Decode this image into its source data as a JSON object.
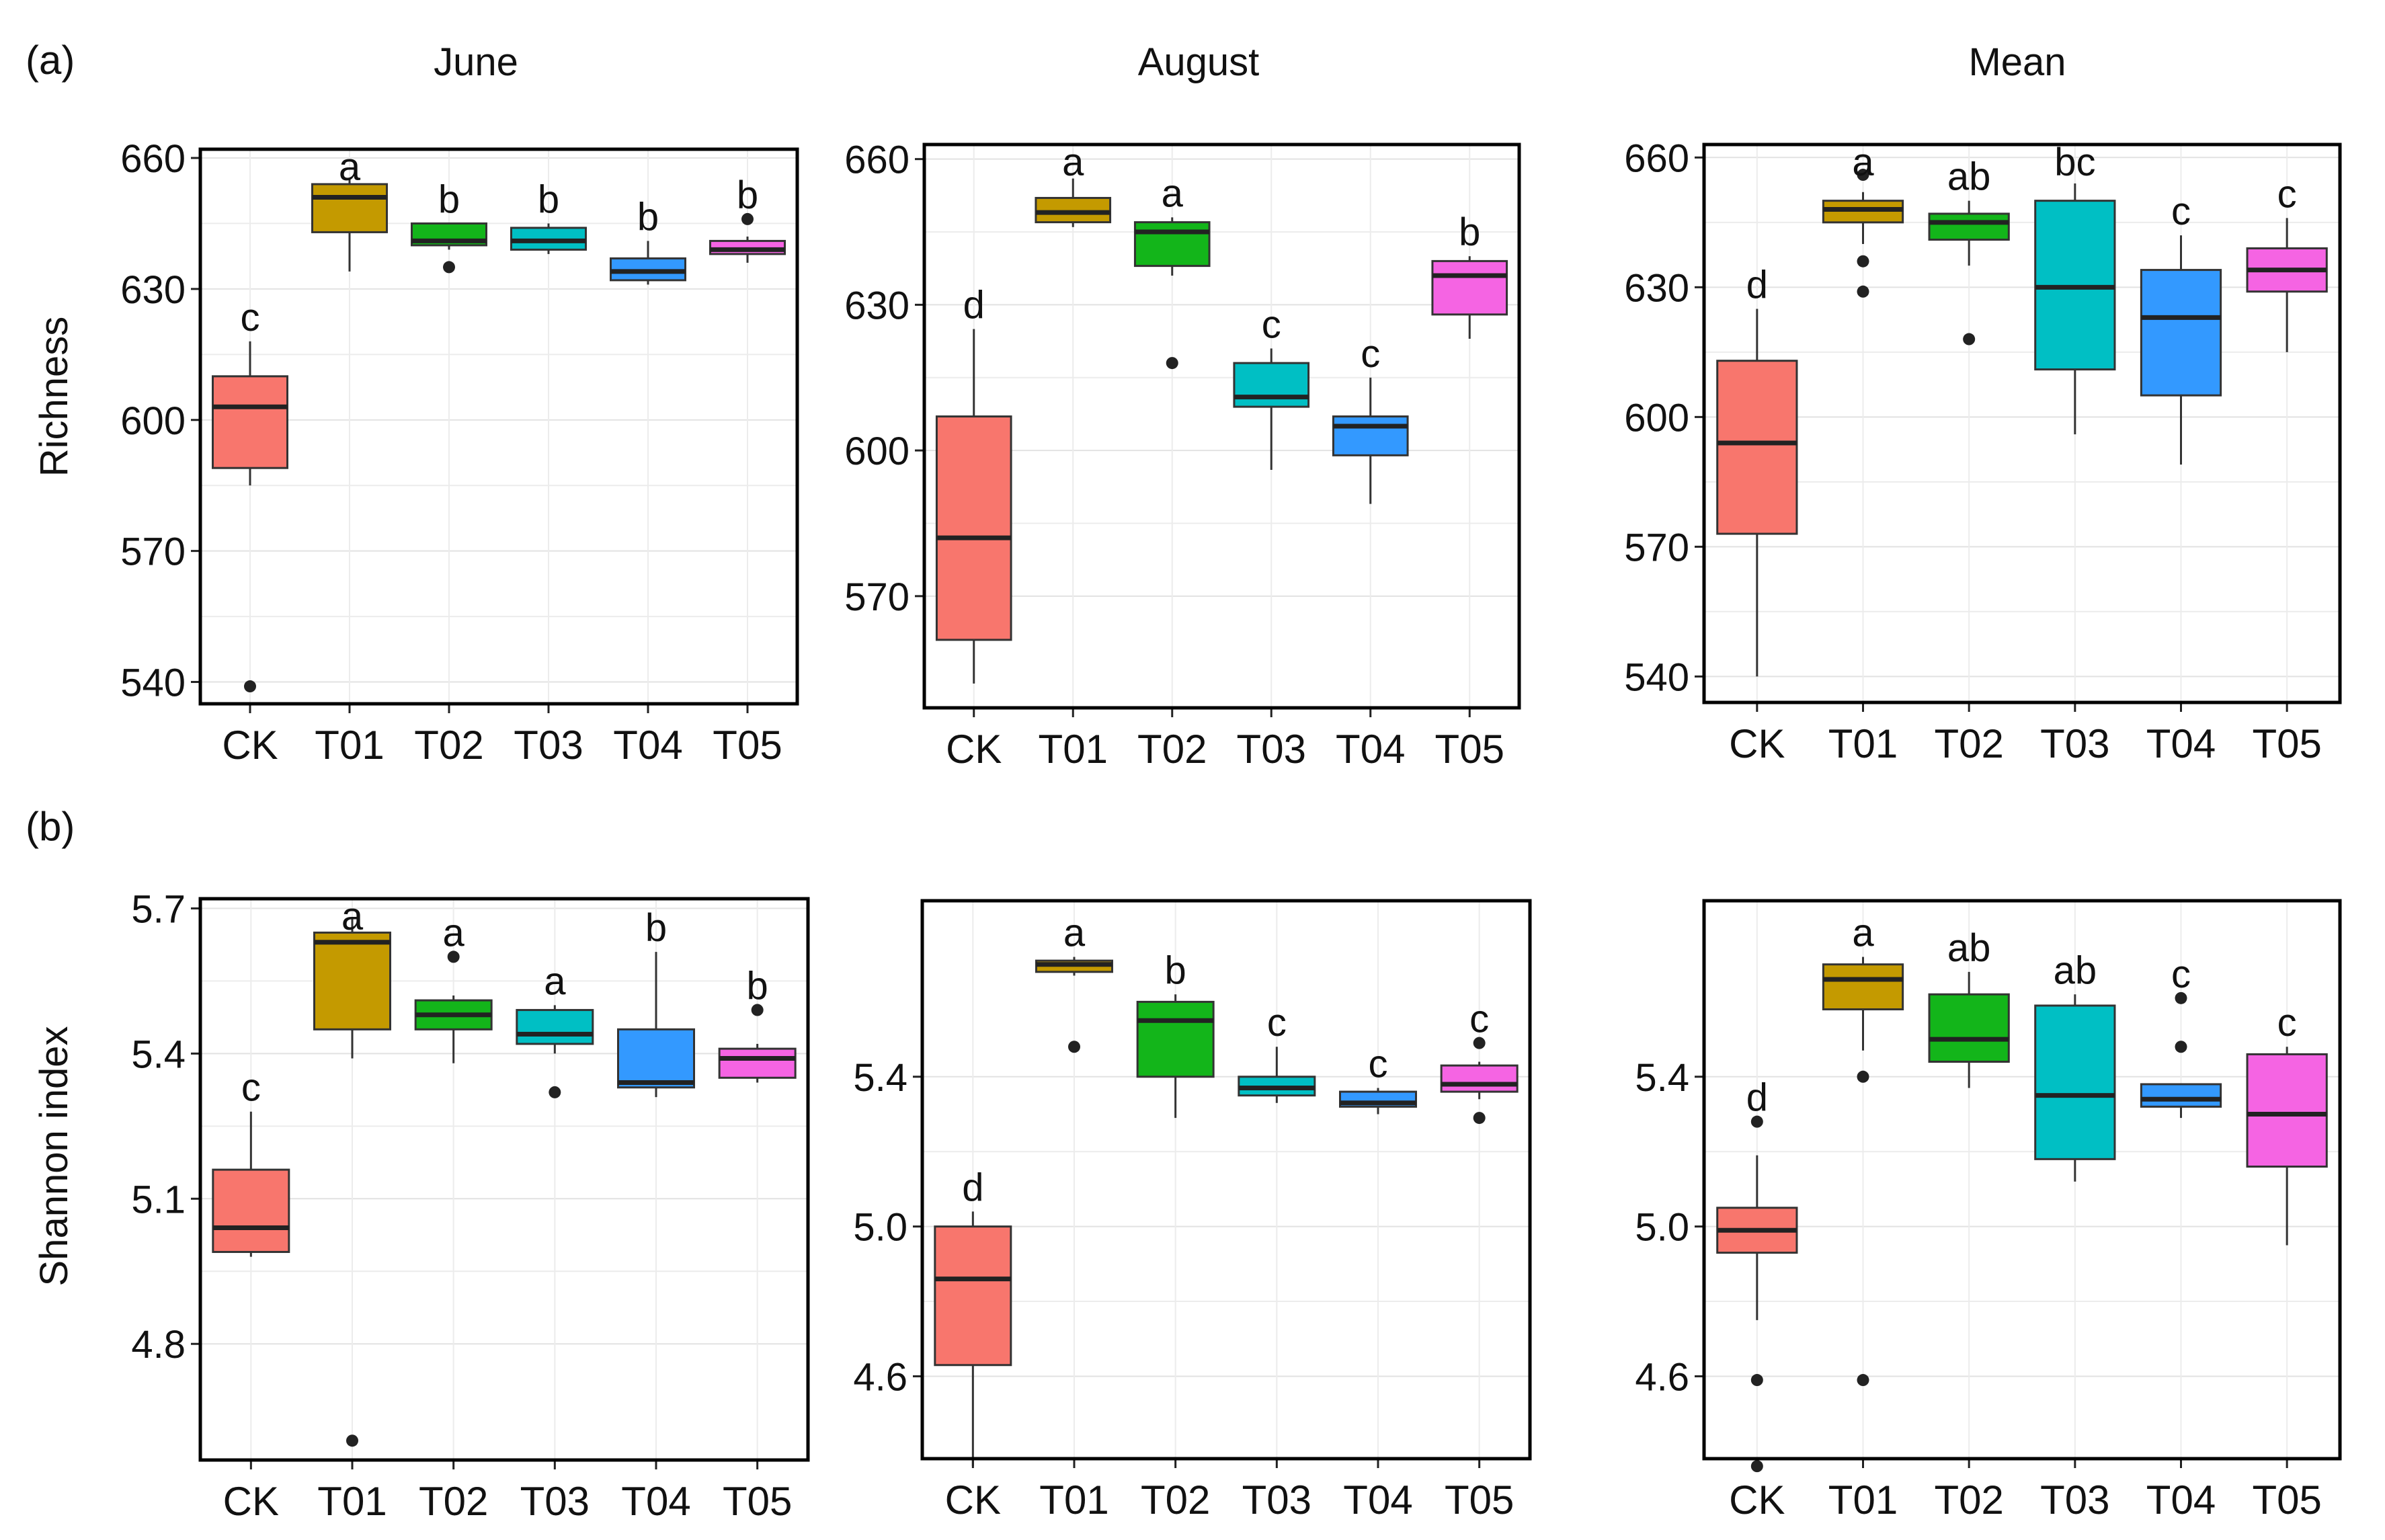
{
  "panel_labels": {
    "a": "(a)",
    "b": "(b)"
  },
  "column_titles": [
    "June",
    "August",
    "Mean"
  ],
  "ylabels": {
    "richness": "Richness",
    "shannon": "Shannon index"
  },
  "categories": [
    "CK",
    "T01",
    "T02",
    "T03",
    "T04",
    "T05"
  ],
  "colors": {
    "CK": "#F8766D",
    "T01": "#C49A00",
    "T02": "#13B51A",
    "T03": "#00BFC4",
    "T04": "#3399FF",
    "T05": "#F564E3"
  },
  "chart_data": [
    {
      "type": "box",
      "id": "richness-june",
      "row": "richness",
      "title": "June",
      "ylabel": "Richness",
      "ylim": [
        535,
        662
      ],
      "yticks": [
        540,
        570,
        600,
        630,
        660
      ],
      "boxes": [
        {
          "cat": "CK",
          "lw": 585,
          "q1": 589,
          "med": 603,
          "q3": 610,
          "uw": 618,
          "out": [
            539
          ],
          "letter": "c"
        },
        {
          "cat": "T01",
          "lw": 634,
          "q1": 643,
          "med": 651,
          "q3": 654,
          "uw": 655,
          "out": [],
          "letter": "a"
        },
        {
          "cat": "T02",
          "lw": 639,
          "q1": 640,
          "med": 641,
          "q3": 645,
          "uw": 645,
          "out": [
            635
          ],
          "letter": "b"
        },
        {
          "cat": "T03",
          "lw": 638,
          "q1": 639,
          "med": 641,
          "q3": 644,
          "uw": 645,
          "out": [],
          "letter": "b"
        },
        {
          "cat": "T04",
          "lw": 631,
          "q1": 632,
          "med": 634,
          "q3": 637,
          "uw": 641,
          "out": [],
          "letter": "b"
        },
        {
          "cat": "T05",
          "lw": 636,
          "q1": 638,
          "med": 639,
          "q3": 641,
          "uw": 642,
          "out": [
            646
          ],
          "letter": "b"
        }
      ]
    },
    {
      "type": "box",
      "id": "richness-august",
      "row": "richness",
      "title": "August",
      "ylim": [
        547,
        663
      ],
      "yticks": [
        570,
        600,
        630,
        660
      ],
      "boxes": [
        {
          "cat": "CK",
          "lw": 552,
          "q1": 561,
          "med": 582,
          "q3": 607,
          "uw": 625,
          "out": [],
          "letter": "d"
        },
        {
          "cat": "T01",
          "lw": 646,
          "q1": 647,
          "med": 649,
          "q3": 652,
          "uw": 656,
          "out": [],
          "letter": "a"
        },
        {
          "cat": "T02",
          "lw": 636,
          "q1": 638,
          "med": 645,
          "q3": 647,
          "uw": 648,
          "out": [
            618
          ],
          "letter": "a"
        },
        {
          "cat": "T03",
          "lw": 596,
          "q1": 609,
          "med": 611,
          "q3": 618,
          "uw": 621,
          "out": [],
          "letter": "c"
        },
        {
          "cat": "T04",
          "lw": 589,
          "q1": 599,
          "med": 605,
          "q3": 607,
          "uw": 615,
          "out": [],
          "letter": "c"
        },
        {
          "cat": "T05",
          "lw": 623,
          "q1": 628,
          "med": 636,
          "q3": 639,
          "uw": 640,
          "out": [],
          "letter": "b"
        }
      ]
    },
    {
      "type": "box",
      "id": "richness-mean",
      "row": "richness",
      "title": "Mean",
      "ylim": [
        534,
        663
      ],
      "yticks": [
        540,
        570,
        600,
        630,
        660
      ],
      "boxes": [
        {
          "cat": "CK",
          "lw": 540,
          "q1": 573,
          "med": 594,
          "q3": 613,
          "uw": 625,
          "out": [],
          "letter": "d"
        },
        {
          "cat": "T01",
          "lw": 640,
          "q1": 645,
          "med": 648,
          "q3": 650,
          "uw": 652,
          "out": [
            656,
            636,
            629
          ],
          "letter": "a"
        },
        {
          "cat": "T02",
          "lw": 635,
          "q1": 641,
          "med": 645,
          "q3": 647,
          "uw": 650,
          "out": [
            618
          ],
          "letter": "ab"
        },
        {
          "cat": "T03",
          "lw": 596,
          "q1": 611,
          "med": 630,
          "q3": 650,
          "uw": 654,
          "out": [],
          "letter": "bc"
        },
        {
          "cat": "T04",
          "lw": 589,
          "q1": 605,
          "med": 623,
          "q3": 634,
          "uw": 642,
          "out": [],
          "letter": "c"
        },
        {
          "cat": "T05",
          "lw": 615,
          "q1": 629,
          "med": 634,
          "q3": 639,
          "uw": 646,
          "out": [],
          "letter": "c"
        }
      ]
    },
    {
      "type": "box",
      "id": "shannon-june",
      "row": "shannon",
      "title": "June",
      "ylabel": "Shannon index",
      "ylim": [
        4.56,
        5.72
      ],
      "yticks": [
        4.8,
        5.1,
        5.4,
        5.7
      ],
      "boxes": [
        {
          "cat": "CK",
          "lw": 4.98,
          "q1": 4.99,
          "med": 5.04,
          "q3": 5.16,
          "uw": 5.28,
          "out": [],
          "letter": "c"
        },
        {
          "cat": "T01",
          "lw": 5.39,
          "q1": 5.45,
          "med": 5.63,
          "q3": 5.65,
          "uw": 5.68,
          "out": [
            4.6
          ],
          "letter": "a"
        },
        {
          "cat": "T02",
          "lw": 5.38,
          "q1": 5.45,
          "med": 5.48,
          "q3": 5.51,
          "uw": 5.52,
          "out": [
            5.6
          ],
          "letter": "a"
        },
        {
          "cat": "T03",
          "lw": 5.4,
          "q1": 5.42,
          "med": 5.44,
          "q3": 5.49,
          "uw": 5.5,
          "out": [
            5.32
          ],
          "letter": "a"
        },
        {
          "cat": "T04",
          "lw": 5.31,
          "q1": 5.33,
          "med": 5.34,
          "q3": 5.45,
          "uw": 5.61,
          "out": [],
          "letter": "b"
        },
        {
          "cat": "T05",
          "lw": 5.34,
          "q1": 5.35,
          "med": 5.39,
          "q3": 5.41,
          "uw": 5.42,
          "out": [
            5.49
          ],
          "letter": "b"
        }
      ]
    },
    {
      "type": "box",
      "id": "shannon-august",
      "row": "shannon",
      "title": "August",
      "ylim": [
        4.38,
        5.87
      ],
      "yticks": [
        4.6,
        5.0,
        5.4
      ],
      "boxes": [
        {
          "cat": "CK",
          "lw": 4.36,
          "q1": 4.63,
          "med": 4.86,
          "q3": 5.0,
          "uw": 5.04,
          "out": [],
          "letter": "d"
        },
        {
          "cat": "T01",
          "lw": 5.67,
          "q1": 5.68,
          "med": 5.7,
          "q3": 5.71,
          "uw": 5.72,
          "out": [
            5.48
          ],
          "letter": "a"
        },
        {
          "cat": "T02",
          "lw": 5.29,
          "q1": 5.4,
          "med": 5.55,
          "q3": 5.6,
          "uw": 5.62,
          "out": [],
          "letter": "b"
        },
        {
          "cat": "T03",
          "lw": 5.33,
          "q1": 5.35,
          "med": 5.37,
          "q3": 5.4,
          "uw": 5.48,
          "out": [],
          "letter": "c"
        },
        {
          "cat": "T04",
          "lw": 5.3,
          "q1": 5.32,
          "med": 5.33,
          "q3": 5.36,
          "uw": 5.37,
          "out": [],
          "letter": "c"
        },
        {
          "cat": "T05",
          "lw": 5.34,
          "q1": 5.36,
          "med": 5.38,
          "q3": 5.43,
          "uw": 5.44,
          "out": [
            5.49,
            5.29
          ],
          "letter": "c"
        }
      ]
    },
    {
      "type": "box",
      "id": "shannon-mean",
      "row": "shannon",
      "title": "Mean",
      "ylim": [
        4.38,
        5.87
      ],
      "yticks": [
        4.6,
        5.0,
        5.4
      ],
      "boxes": [
        {
          "cat": "CK",
          "lw": 4.75,
          "q1": 4.93,
          "med": 4.99,
          "q3": 5.05,
          "uw": 5.19,
          "out": [
            5.28,
            4.59,
            4.36
          ],
          "letter": "d"
        },
        {
          "cat": "T01",
          "lw": 5.47,
          "q1": 5.58,
          "med": 5.66,
          "q3": 5.7,
          "uw": 5.72,
          "out": [
            5.4,
            4.59
          ],
          "letter": "a"
        },
        {
          "cat": "T02",
          "lw": 5.37,
          "q1": 5.44,
          "med": 5.5,
          "q3": 5.62,
          "uw": 5.68,
          "out": [],
          "letter": "ab"
        },
        {
          "cat": "T03",
          "lw": 5.12,
          "q1": 5.18,
          "med": 5.35,
          "q3": 5.59,
          "uw": 5.62,
          "out": [],
          "letter": "ab"
        },
        {
          "cat": "T04",
          "lw": 5.29,
          "q1": 5.32,
          "med": 5.34,
          "q3": 5.38,
          "uw": 5.38,
          "out": [
            5.61,
            5.48
          ],
          "letter": "c"
        },
        {
          "cat": "T05",
          "lw": 4.95,
          "q1": 5.16,
          "med": 5.3,
          "q3": 5.46,
          "uw": 5.48,
          "out": [],
          "letter": "c"
        }
      ]
    }
  ]
}
